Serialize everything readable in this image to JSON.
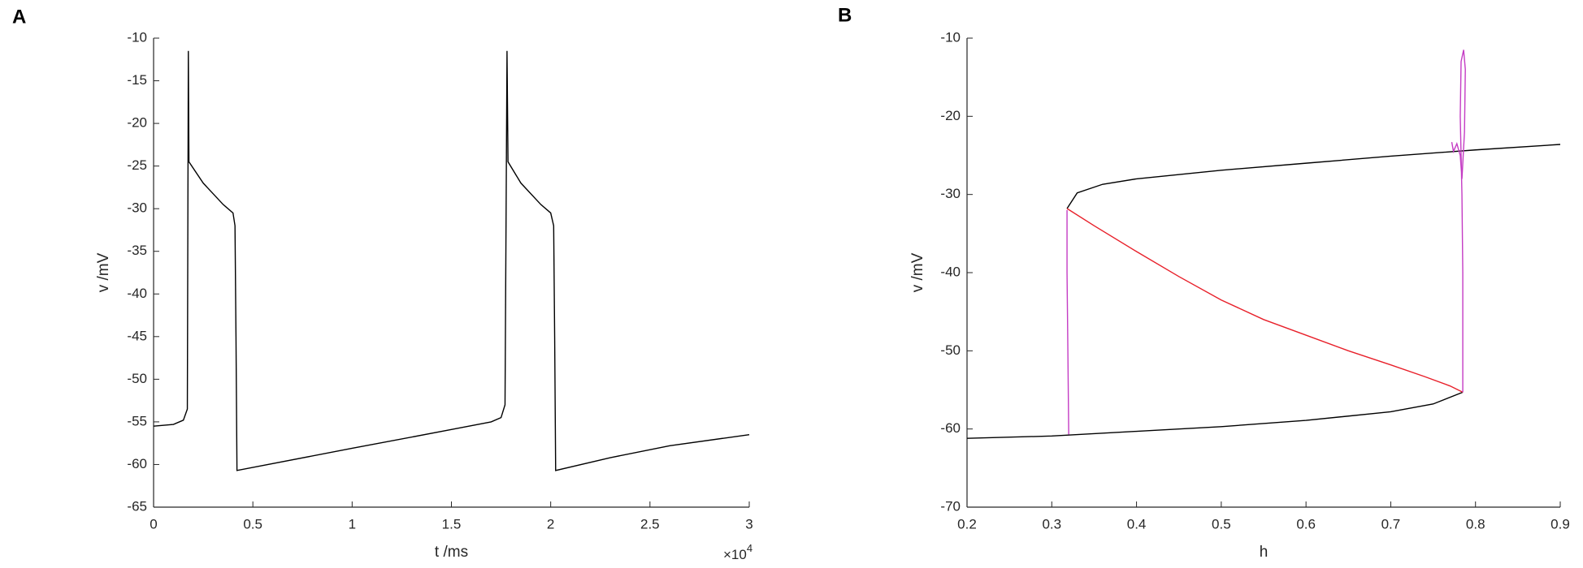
{
  "chart_data": [
    {
      "type": "line",
      "panel_label": "A",
      "xlabel": "t /ms",
      "ylabel": "v /mV",
      "x_exponent_label": {
        "base": "×10",
        "power": "4"
      },
      "xlim": [
        0,
        3
      ],
      "xticks": [
        0,
        0.5,
        1,
        1.5,
        2,
        2.5,
        3
      ],
      "ylim": [
        -65,
        -10
      ],
      "yticks": [
        -65,
        -60,
        -55,
        -50,
        -45,
        -40,
        -35,
        -30,
        -25,
        -20,
        -15,
        -10
      ],
      "color": "#000000",
      "x": [
        0,
        0.1,
        0.15,
        0.17,
        0.175,
        0.178,
        0.25,
        0.35,
        0.4,
        0.41,
        0.415,
        0.42,
        1.0,
        1.5,
        1.7,
        1.75,
        1.77,
        1.78,
        1.785,
        1.85,
        1.95,
        2.0,
        2.015,
        2.02,
        2.025,
        2.3,
        2.6,
        3.0
      ],
      "values": [
        -55.5,
        -55.3,
        -54.8,
        -53.5,
        -11.5,
        -24.5,
        -27,
        -29.5,
        -30.5,
        -32,
        -45,
        -60.7,
        -58.1,
        -55.9,
        -55,
        -54.5,
        -53,
        -11.5,
        -24.5,
        -27,
        -29.5,
        -30.5,
        -32,
        -45,
        -60.7,
        -59.2,
        -57.8,
        -56.5
      ]
    },
    {
      "type": "line",
      "panel_label": "B",
      "xlabel": "h",
      "ylabel": "v /mV",
      "xlim": [
        0.2,
        0.9
      ],
      "xticks": [
        0.2,
        0.3,
        0.4,
        0.5,
        0.6,
        0.7,
        0.8,
        0.9
      ],
      "ylim": [
        -70,
        -10
      ],
      "yticks": [
        -70,
        -60,
        -50,
        -40,
        -30,
        -20,
        -10
      ],
      "series": [
        {
          "color": "#000000",
          "x": [
            0.2,
            0.3,
            0.4,
            0.5,
            0.6,
            0.7,
            0.75,
            0.785,
            null,
            0.318,
            0.33,
            0.36,
            0.4,
            0.5,
            0.6,
            0.7,
            0.8,
            0.9
          ],
          "values": [
            -61.2,
            -60.9,
            -60.3,
            -59.7,
            -58.9,
            -57.8,
            -56.8,
            -55.3,
            null,
            -31.8,
            -29.8,
            -28.7,
            -28,
            -26.9,
            -26,
            -25.1,
            -24.3,
            -23.6
          ]
        },
        {
          "color": "#e8202a",
          "x": [
            0.318,
            0.35,
            0.4,
            0.45,
            0.5,
            0.55,
            0.6,
            0.65,
            0.7,
            0.74,
            0.77,
            0.785
          ],
          "values": [
            -31.8,
            -34,
            -37.3,
            -40.5,
            -43.5,
            -46,
            -48,
            -50,
            -51.8,
            -53.3,
            -54.5,
            -55.3
          ]
        },
        {
          "color": "#c43cc4",
          "x": [
            0.32,
            0.319,
            0.318,
            0.318,
            null,
            0.785,
            0.785,
            0.784,
            0.782,
            0.783,
            0.786,
            0.788,
            0.787,
            0.784,
            0.782,
            0.778,
            0.774,
            0.772
          ],
          "values": [
            -60.7,
            -50,
            -40,
            -32,
            null,
            -55.3,
            -40,
            -30,
            -20,
            -13,
            -11.5,
            -14,
            -22,
            -28,
            -25,
            -23.5,
            -24.5,
            -23.3
          ]
        }
      ]
    }
  ]
}
